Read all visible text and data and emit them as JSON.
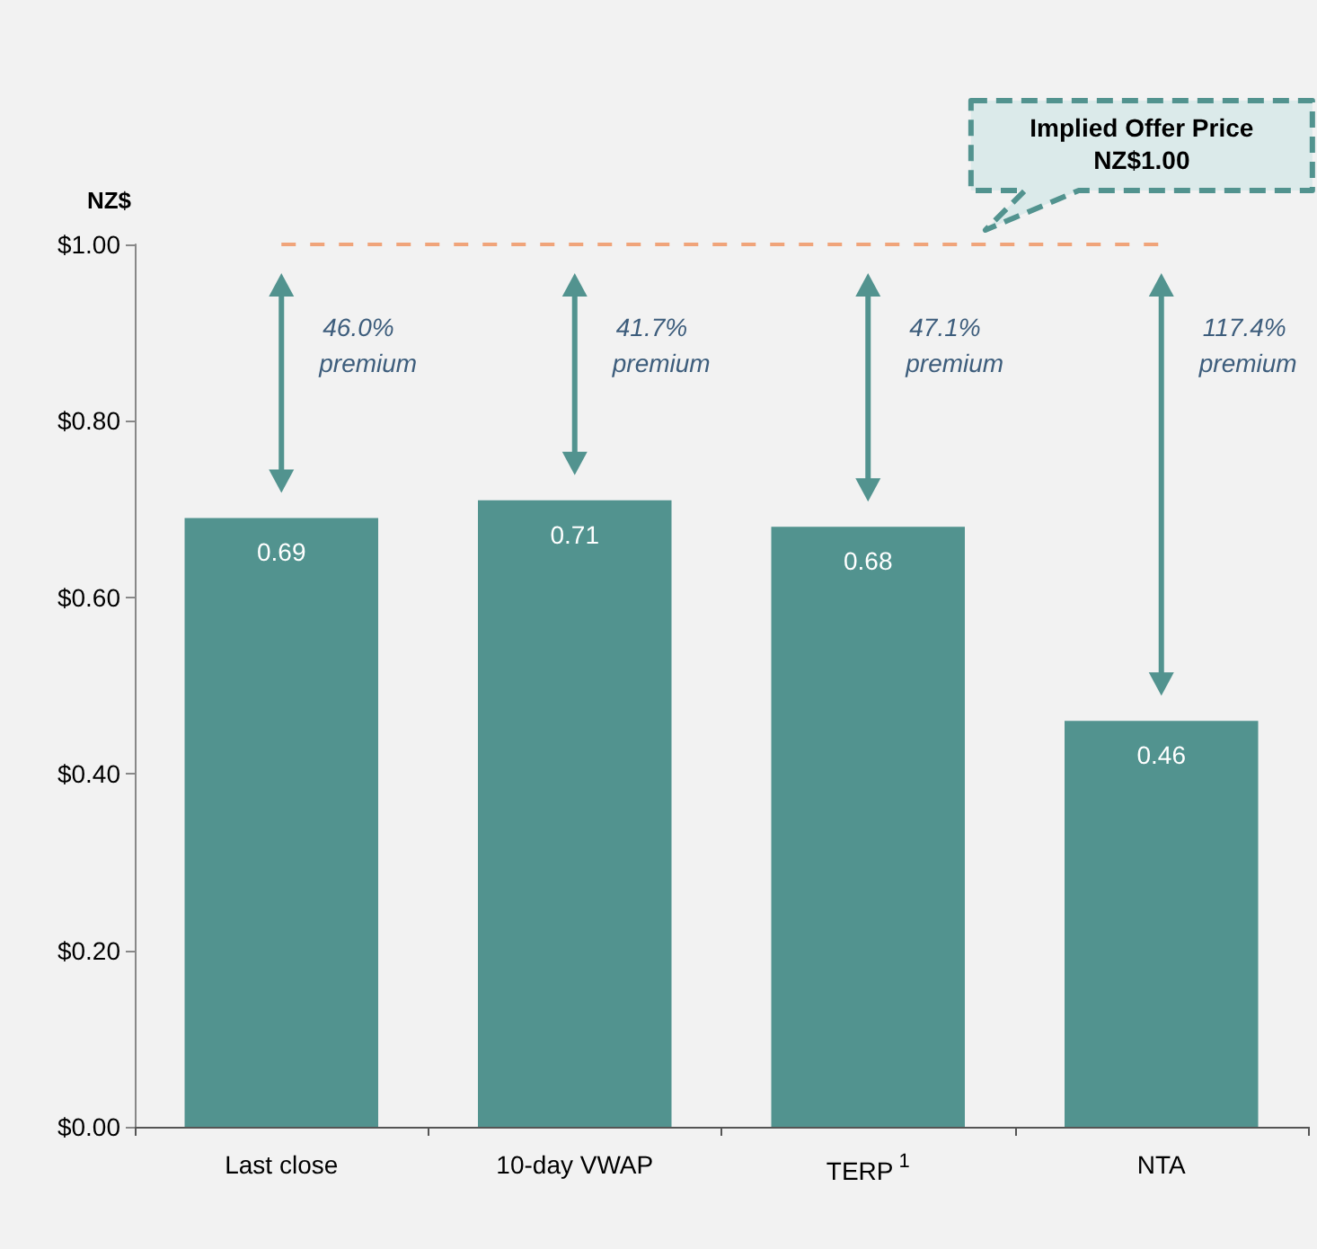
{
  "chart_data": {
    "type": "bar",
    "ylabel": "NZ$",
    "categories": [
      "Last close",
      "10-day VWAP",
      "TERP$^{1}$",
      "NTA"
    ],
    "values": [
      0.69,
      0.71,
      0.68,
      0.46
    ],
    "color": "#52938f",
    "data_labels": true,
    "ylim": [
      0,
      1
    ],
    "yticks": [
      {
        "value": 0,
        "label": "$0.00"
      },
      {
        "value": 0.2,
        "label": "$0.20"
      },
      {
        "value": 0.4,
        "label": "$0.40"
      },
      {
        "value": 0.6,
        "label": "$0.60"
      },
      {
        "value": 0.8,
        "label": "$0.80"
      },
      {
        "value": 1,
        "label": "$1.00"
      }
    ],
    "grid": false,
    "ref_lines": [
      {
        "axis": "y",
        "value": 1.0,
        "label": "Implied Offer Price\nNZ$1.00",
        "color": "#f0a47a",
        "line_style": "dashed"
      }
    ],
    "annotations": [
      "46.0%\npremium",
      "41.7%\npremium",
      "47.1%\npremium",
      "117.4%\npremium"
    ]
  }
}
